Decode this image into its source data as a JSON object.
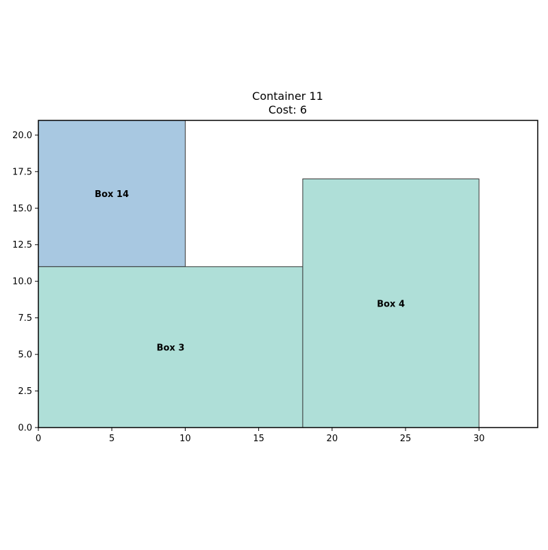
{
  "chart_data": {
    "type": "rectangle-packing",
    "title": [
      "Container 11",
      "Cost: 6"
    ],
    "xlabel": "",
    "ylabel": "",
    "xlim": [
      0,
      34
    ],
    "ylim": [
      0,
      21
    ],
    "xticks": [
      0,
      5,
      10,
      15,
      20,
      25,
      30
    ],
    "yticks": [
      0.0,
      2.5,
      5.0,
      7.5,
      10.0,
      12.5,
      15.0,
      17.5,
      20.0
    ],
    "grid": false,
    "boxes": [
      {
        "label": "Box 14",
        "x": 0,
        "y": 11,
        "width": 10,
        "height": 10,
        "color": "#a8c8e1"
      },
      {
        "label": "Box 3",
        "x": 0,
        "y": 0,
        "width": 18,
        "height": 11,
        "color": "#afdfd8"
      },
      {
        "label": "Box 4",
        "x": 18,
        "y": 0,
        "width": 12,
        "height": 17,
        "color": "#afdfd8"
      }
    ]
  }
}
